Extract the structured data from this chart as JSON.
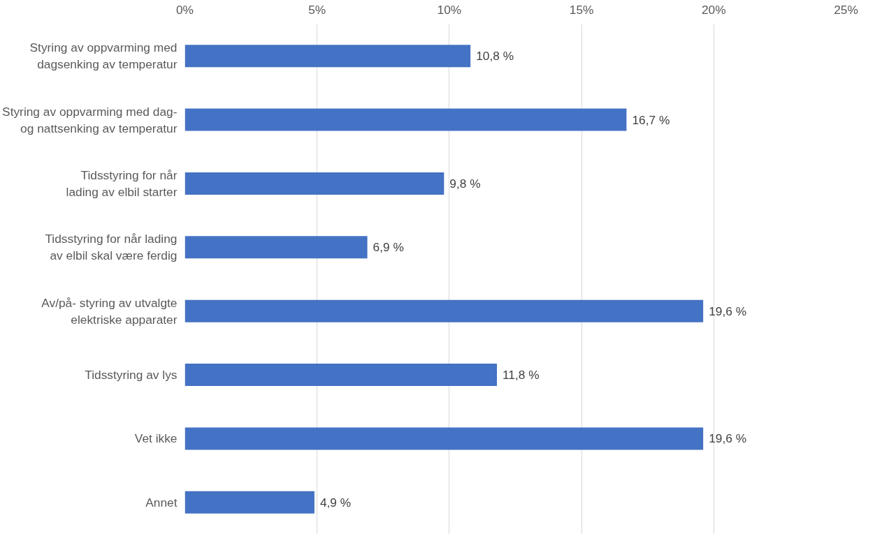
{
  "chart_data": {
    "type": "bar",
    "orientation": "horizontal",
    "categories": [
      "Styring av oppvarming med dagsenking av temperatur",
      "Styring av oppvarming med dag- og nattsenking av temperatur",
      "Tidsstyring for når lading av elbil starter",
      "Tidsstyring for når lading av elbil skal være ferdig",
      "Av/på- styring av utvalgte elektriske apparater",
      "Tidsstyring av lys",
      "Vet ikke",
      "Annet"
    ],
    "values": [
      10.8,
      16.7,
      9.8,
      6.9,
      19.6,
      11.8,
      19.6,
      4.9
    ],
    "value_labels": [
      "10,8 %",
      "16,7 %",
      "9,8 %",
      "6,9 %",
      "19,6 %",
      "11,8 %",
      "19,6 %",
      "4,9 %"
    ],
    "color": "#4472c4",
    "xlim": [
      0,
      25
    ],
    "xticks": [
      {
        "value": 0,
        "label": "0%"
      },
      {
        "value": 5,
        "label": "5%"
      },
      {
        "value": 10,
        "label": "10%"
      },
      {
        "value": 15,
        "label": "15%"
      },
      {
        "value": 20,
        "label": "20%"
      },
      {
        "value": 25,
        "label": "25%"
      }
    ],
    "grid": "x"
  }
}
